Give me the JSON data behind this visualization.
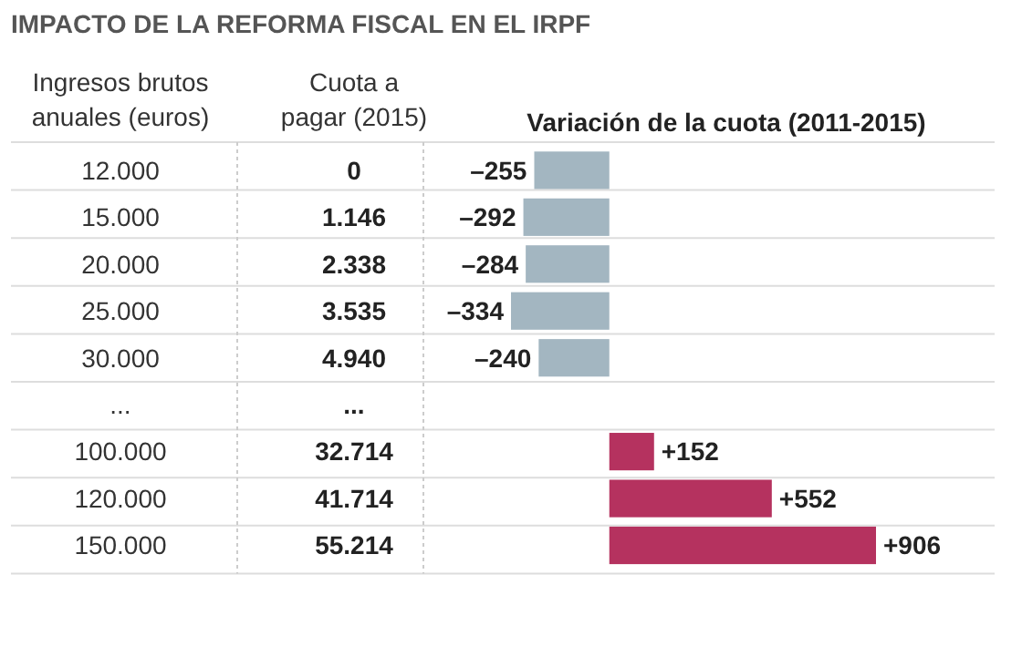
{
  "chart_data": {
    "type": "bar",
    "orientation": "horizontal",
    "title": "IMPACTO DE LA REFORMA FISCAL EN EL IRPF",
    "ylabel": "Ingresos brutos anuales (euros)",
    "xlabel": "Variación de la cuota (2011-2015)",
    "categories": [
      "12.000",
      "15.000",
      "20.000",
      "25.000",
      "30.000",
      "...",
      "100.000",
      "120.000",
      "150.000"
    ],
    "values": [
      -255,
      -292,
      -284,
      -334,
      -240,
      null,
      152,
      552,
      906
    ],
    "value_labels": [
      "–255",
      "–292",
      "–284",
      "–334",
      "–240",
      null,
      "+152",
      "+552",
      "+906"
    ],
    "colors": [
      "#a3b6c1",
      "#a3b6c1",
      "#a3b6c1",
      "#a3b6c1",
      "#a3b6c1",
      null,
      "#b5325f",
      "#b5325f",
      "#b5325f"
    ],
    "annotations": [
      "Cuota a pagar (2015)",
      "0",
      "1.146",
      "2.338",
      "3.535",
      "4.940",
      "...",
      "32.714",
      "41.714",
      "55.214"
    ]
  }
}
